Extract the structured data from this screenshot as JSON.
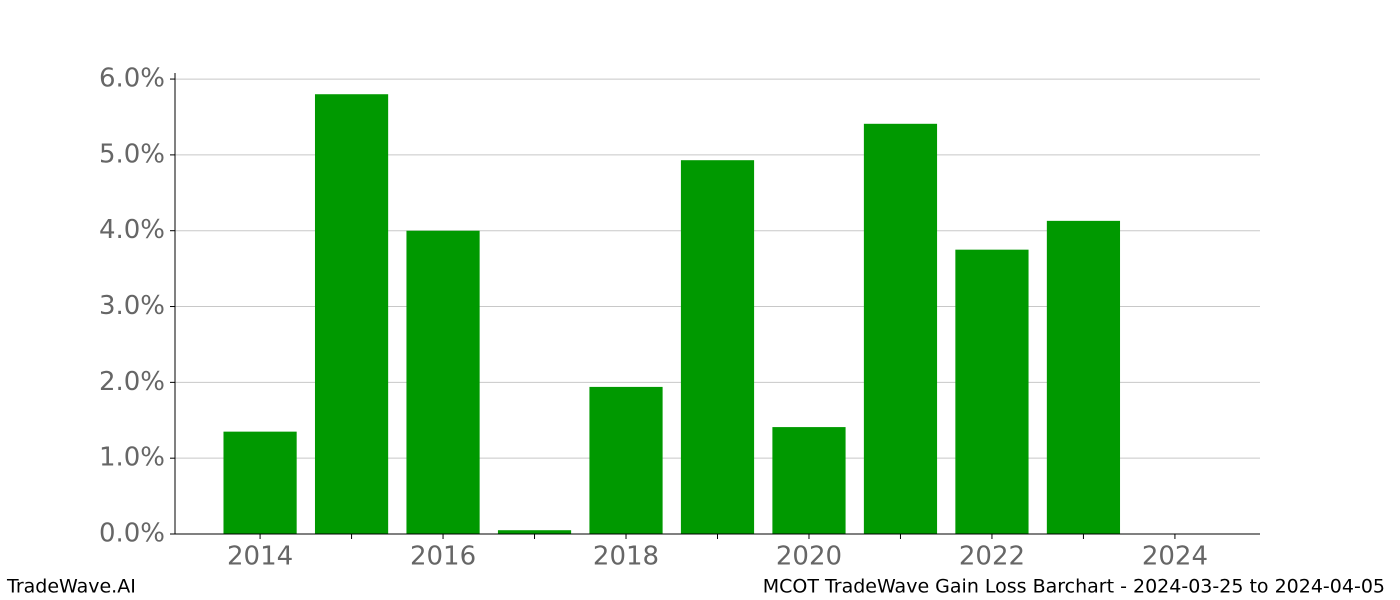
{
  "chart_data": {
    "type": "bar",
    "title": "MCOT TradeWave Gain Loss Barchart - 2024-03-25 to 2024-04-05",
    "watermark": "TradeWave.AI",
    "x": [
      2014,
      2015,
      2016,
      2017,
      2018,
      2019,
      2020,
      2021,
      2022,
      2023
    ],
    "values": [
      1.35,
      5.8,
      4.0,
      0.05,
      1.94,
      4.93,
      1.41,
      5.41,
      3.75,
      4.13
    ],
    "color": "#009900",
    "xlim": [
      2013.07,
      2024.93
    ],
    "xticks": [
      2014,
      2016,
      2018,
      2020,
      2022,
      2024
    ],
    "xminor_ticks": [
      2015,
      2017,
      2019,
      2021,
      2023
    ],
    "ylim": [
      0,
      6.08
    ],
    "yticks": [
      {
        "value": 0,
        "label": "0.0%"
      },
      {
        "value": 1,
        "label": "1.0%"
      },
      {
        "value": 2,
        "label": "2.0%"
      },
      {
        "value": 3,
        "label": "3.0%"
      },
      {
        "value": 4,
        "label": "4.0%"
      },
      {
        "value": 5,
        "label": "5.0%"
      },
      {
        "value": 6,
        "label": "6.0%"
      }
    ],
    "grid": true
  }
}
